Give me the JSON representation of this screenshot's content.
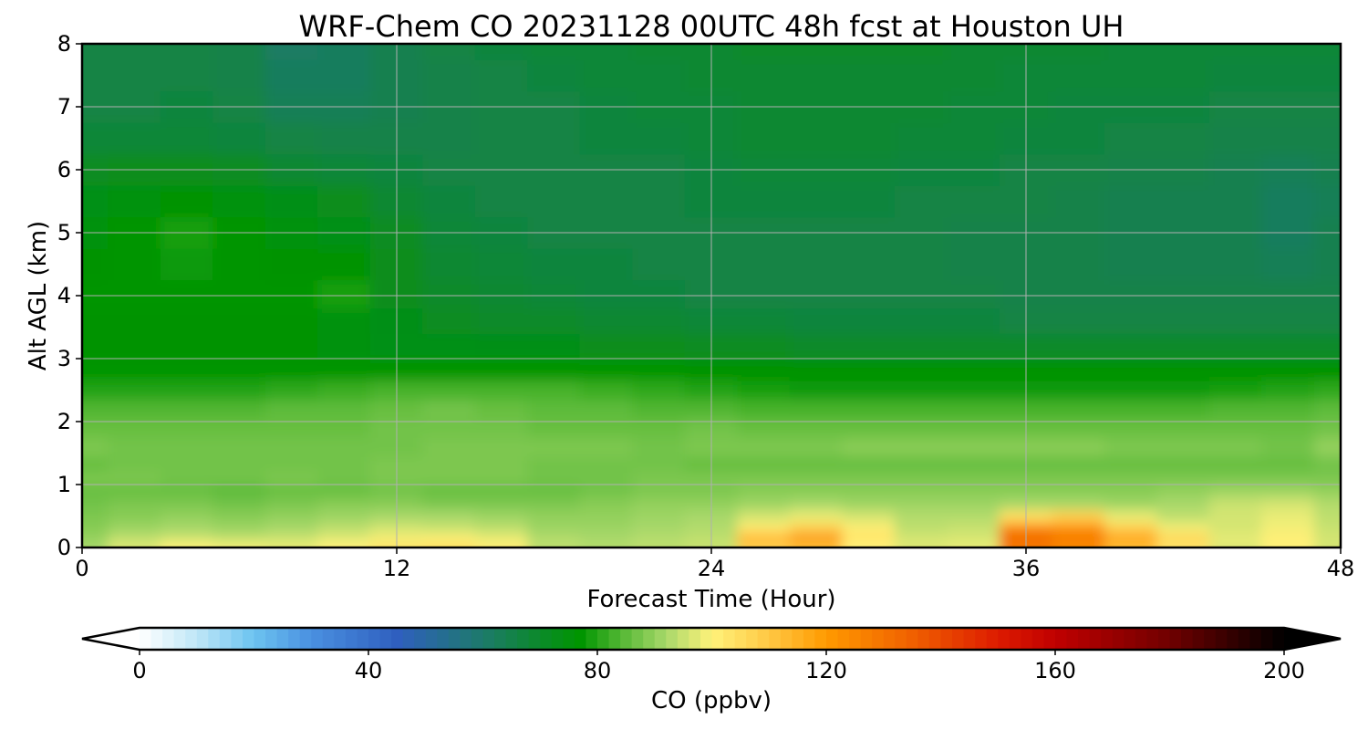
{
  "chart_data": {
    "type": "heatmap",
    "title": "WRF-Chem CO  20231128 00UTC 48h fcst at Houston UH",
    "xlabel": "Forecast Time (Hour)",
    "ylabel": "Alt AGL (km)",
    "xlim": [
      0,
      48
    ],
    "ylim": [
      0,
      8
    ],
    "x_ticks": [
      0,
      12,
      24,
      36,
      48
    ],
    "y_ticks": [
      0,
      1,
      2,
      3,
      4,
      5,
      6,
      7,
      8
    ],
    "grid": true,
    "colorbar": {
      "label": "CO  (ppbv)",
      "range": [
        0,
        200
      ],
      "ticks": [
        0,
        40,
        80,
        120,
        160,
        200
      ],
      "extend": "both",
      "orientation": "horizontal",
      "colors": [
        {
          "v": 0,
          "c": "#ffffff"
        },
        {
          "v": 10,
          "c": "#bfe6f7"
        },
        {
          "v": 20,
          "c": "#6cc3f0"
        },
        {
          "v": 30,
          "c": "#4a90e0"
        },
        {
          "v": 45,
          "c": "#2f5fbf"
        },
        {
          "v": 60,
          "c": "#1d7a6a"
        },
        {
          "v": 70,
          "c": "#0b8a2a"
        },
        {
          "v": 77,
          "c": "#009500"
        },
        {
          "v": 85,
          "c": "#5dbb3a"
        },
        {
          "v": 92,
          "c": "#a8d86a"
        },
        {
          "v": 100,
          "c": "#fff27a"
        },
        {
          "v": 110,
          "c": "#ffc844"
        },
        {
          "v": 120,
          "c": "#ff9a00"
        },
        {
          "v": 135,
          "c": "#f06000"
        },
        {
          "v": 150,
          "c": "#dd1b00"
        },
        {
          "v": 160,
          "c": "#c00000"
        },
        {
          "v": 180,
          "c": "#700000"
        },
        {
          "v": 200,
          "c": "#000000"
        }
      ]
    },
    "altitude_levels_km": [
      0.05,
      0.15,
      0.3,
      0.5,
      0.7,
      0.9,
      1.1,
      1.3,
      1.6,
      1.9,
      2.2,
      2.5,
      2.8,
      3.2,
      3.6,
      4.0,
      4.5,
      5.0,
      5.5,
      6.0,
      6.5,
      7.0,
      7.5,
      8.0
    ],
    "time_hours": [
      0,
      2,
      4,
      6,
      8,
      10,
      12,
      14,
      16,
      18,
      20,
      22,
      24,
      26,
      28,
      30,
      32,
      34,
      36,
      38,
      40,
      42,
      44,
      46,
      48
    ],
    "z_ppbv": [
      [
        92,
        97,
        100,
        99,
        98,
        100,
        103,
        104,
        101,
        94,
        93,
        94,
        95,
        108,
        112,
        100,
        97,
        98,
        128,
        124,
        112,
        103,
        97,
        100,
        96
      ],
      [
        90,
        94,
        95,
        94,
        95,
        97,
        99,
        100,
        98,
        93,
        92,
        93,
        94,
        116,
        124,
        104,
        96,
        96,
        135,
        130,
        120,
        108,
        98,
        101,
        96
      ],
      [
        89,
        91,
        92,
        91,
        92,
        94,
        96,
        95,
        94,
        91,
        91,
        92,
        93,
        102,
        108,
        101,
        94,
        95,
        124,
        122,
        108,
        99,
        96,
        99,
        95
      ],
      [
        88,
        89,
        90,
        89,
        90,
        91,
        92,
        92,
        91,
        90,
        90,
        91,
        92,
        96,
        98,
        96,
        93,
        93,
        104,
        108,
        98,
        94,
        96,
        98,
        94
      ],
      [
        87,
        88,
        88,
        87,
        88,
        89,
        89,
        88,
        88,
        88,
        89,
        90,
        90,
        91,
        92,
        91,
        91,
        91,
        92,
        92,
        91,
        92,
        95,
        96,
        93
      ],
      [
        86,
        86,
        86,
        85,
        86,
        86,
        87,
        86,
        86,
        86,
        87,
        88,
        88,
        89,
        89,
        89,
        89,
        89,
        89,
        89,
        89,
        90,
        91,
        91,
        90
      ],
      [
        88,
        88,
        87,
        87,
        88,
        87,
        88,
        88,
        88,
        87,
        87,
        88,
        88,
        88,
        88,
        88,
        88,
        88,
        88,
        88,
        88,
        88,
        88,
        88,
        88
      ],
      [
        86,
        87,
        87,
        87,
        87,
        87,
        88,
        88,
        88,
        87,
        87,
        87,
        86,
        86,
        86,
        86,
        86,
        86,
        86,
        86,
        86,
        86,
        86,
        86,
        87
      ],
      [
        88,
        87,
        87,
        87,
        87,
        87,
        87,
        88,
        88,
        88,
        88,
        87,
        88,
        88,
        88,
        89,
        89,
        89,
        89,
        89,
        88,
        88,
        88,
        87,
        90
      ],
      [
        86,
        86,
        86,
        86,
        86,
        86,
        87,
        87,
        87,
        86,
        86,
        86,
        87,
        86,
        86,
        86,
        86,
        86,
        86,
        86,
        86,
        86,
        86,
        86,
        87
      ],
      [
        84,
        84,
        84,
        84,
        85,
        85,
        86,
        87,
        86,
        85,
        85,
        84,
        84,
        83,
        83,
        83,
        83,
        83,
        83,
        83,
        83,
        83,
        84,
        84,
        85
      ],
      [
        80,
        80,
        80,
        80,
        81,
        82,
        83,
        83,
        83,
        83,
        82,
        81,
        80,
        79,
        78,
        78,
        78,
        78,
        78,
        78,
        78,
        78,
        79,
        80,
        81
      ],
      [
        77,
        77,
        77,
        77,
        77,
        77,
        77,
        77,
        77,
        77,
        77,
        77,
        76,
        76,
        76,
        76,
        76,
        76,
        76,
        76,
        76,
        76,
        76,
        76,
        76
      ],
      [
        76,
        76,
        76,
        76,
        76,
        75,
        74,
        74,
        73,
        73,
        72,
        72,
        71,
        71,
        70,
        70,
        70,
        70,
        70,
        70,
        70,
        70,
        70,
        70,
        70
      ],
      [
        76,
        76,
        76,
        76,
        76,
        75,
        73,
        71,
        70,
        70,
        69,
        69,
        68,
        68,
        67,
        67,
        67,
        67,
        66,
        66,
        66,
        66,
        66,
        66,
        66
      ],
      [
        77,
        77,
        77,
        77,
        77,
        79,
        72,
        70,
        69,
        68,
        67,
        67,
        66,
        66,
        66,
        66,
        66,
        66,
        65,
        65,
        65,
        65,
        65,
        65,
        65
      ],
      [
        76,
        77,
        78,
        77,
        76,
        76,
        72,
        69,
        68,
        67,
        67,
        66,
        66,
        66,
        66,
        66,
        66,
        65,
        65,
        65,
        64,
        64,
        64,
        63,
        64
      ],
      [
        75,
        77,
        79,
        77,
        75,
        74,
        71,
        68,
        67,
        66,
        66,
        66,
        66,
        66,
        66,
        66,
        66,
        65,
        65,
        65,
        64,
        64,
        64,
        62,
        64
      ],
      [
        74,
        75,
        76,
        75,
        73,
        72,
        69,
        67,
        66,
        66,
        66,
        66,
        67,
        67,
        67,
        67,
        66,
        66,
        66,
        65,
        64,
        64,
        64,
        62,
        63
      ],
      [
        71,
        72,
        72,
        71,
        69,
        68,
        67,
        66,
        66,
        66,
        66,
        66,
        67,
        68,
        68,
        68,
        67,
        67,
        66,
        66,
        65,
        65,
        64,
        63,
        64
      ],
      [
        68,
        68,
        68,
        67,
        66,
        65,
        65,
        65,
        66,
        66,
        67,
        67,
        68,
        69,
        69,
        69,
        68,
        68,
        67,
        67,
        66,
        66,
        65,
        65,
        65
      ],
      [
        66,
        66,
        67,
        66,
        63,
        63,
        64,
        65,
        66,
        66,
        67,
        68,
        68,
        69,
        69,
        69,
        69,
        68,
        68,
        67,
        67,
        67,
        66,
        66,
        66
      ],
      [
        66,
        66,
        66,
        65,
        62,
        62,
        64,
        65,
        66,
        67,
        68,
        68,
        69,
        69,
        69,
        69,
        69,
        69,
        68,
        68,
        68,
        68,
        67,
        67,
        67
      ],
      [
        66,
        66,
        66,
        65,
        61,
        62,
        64,
        66,
        67,
        68,
        68,
        69,
        69,
        70,
        70,
        70,
        70,
        69,
        69,
        69,
        68,
        68,
        68,
        68,
        68
      ]
    ]
  }
}
